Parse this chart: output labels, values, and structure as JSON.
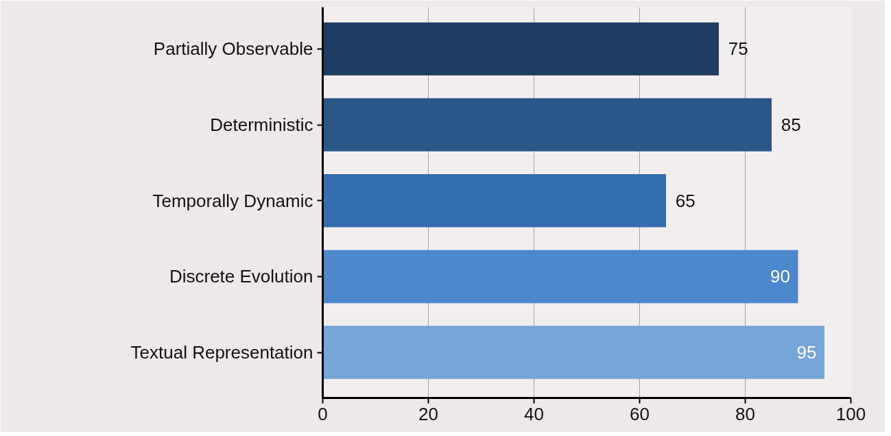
{
  "chart_data": {
    "type": "bar",
    "orientation": "horizontal",
    "categories": [
      "Partially Observable",
      "Deterministic",
      "Temporally Dynamic",
      "Discrete Evolution",
      "Textual Representation"
    ],
    "values": [
      75,
      85,
      65,
      90,
      95
    ],
    "colors": [
      "#1f3d63",
      "#2a5688",
      "#336eb0",
      "#4d87cc",
      "#76a5d8"
    ],
    "xlim": [
      0,
      100
    ],
    "xticks": [
      0,
      20,
      40,
      60,
      80,
      100
    ],
    "grid": "x",
    "data_labels": true
  }
}
